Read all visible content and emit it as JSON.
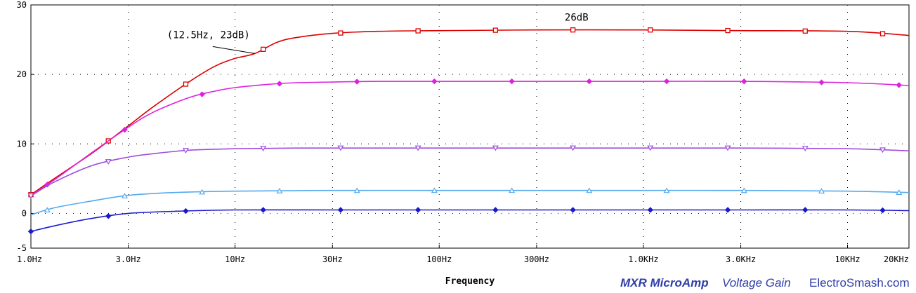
{
  "chart_data": {
    "type": "line",
    "xlabel": "Frequency",
    "ylabel": "",
    "x_scale": "log",
    "xlim": [
      1,
      20000
    ],
    "ylim": [
      -5,
      30
    ],
    "grid": "dotted",
    "legend": "none",
    "x_ticks": [
      {
        "value": 1,
        "label": "1.0Hz"
      },
      {
        "value": 3,
        "label": "3.0Hz"
      },
      {
        "value": 10,
        "label": "10Hz"
      },
      {
        "value": 30,
        "label": "30Hz"
      },
      {
        "value": 100,
        "label": "100Hz"
      },
      {
        "value": 300,
        "label": "300Hz"
      },
      {
        "value": 1000,
        "label": "1.0KHz"
      },
      {
        "value": 3000,
        "label": "3.0KHz"
      },
      {
        "value": 10000,
        "label": "10KHz"
      },
      {
        "value": 20000,
        "label": "20KHz"
      }
    ],
    "y_ticks": [
      {
        "value": 30,
        "label": "30"
      },
      {
        "value": 20,
        "label": "20"
      },
      {
        "value": 10,
        "label": "10"
      },
      {
        "value": 0,
        "label": "0"
      },
      {
        "value": -5,
        "label": "-5"
      }
    ],
    "series": [
      {
        "color": "#dd0000",
        "marker": "square",
        "x": [
          1,
          1.3,
          2,
          3,
          4,
          6,
          8,
          10,
          12.5,
          16,
          20,
          30,
          50,
          100,
          300,
          1000,
          3000,
          10000,
          20000
        ],
        "y": [
          2.7,
          5.0,
          8.7,
          12.6,
          15.4,
          19.0,
          21.2,
          22.3,
          23.0,
          24.6,
          25.3,
          25.9,
          26.2,
          26.3,
          26.4,
          26.4,
          26.3,
          26.2,
          25.6
        ]
      },
      {
        "color": "#dd22dd",
        "marker": "diamond",
        "x": [
          1,
          1.3,
          2,
          3,
          4,
          6,
          8,
          10,
          15,
          20,
          30,
          50,
          100,
          300,
          1000,
          3000,
          10000,
          20000
        ],
        "y": [
          2.6,
          4.8,
          8.8,
          12.4,
          14.6,
          16.7,
          17.6,
          18.1,
          18.6,
          18.8,
          18.9,
          19.0,
          19.0,
          19.0,
          19.0,
          19.0,
          18.8,
          18.4
        ]
      },
      {
        "color": "#9d4ddd",
        "marker": "triangle-down",
        "x": [
          1,
          1.3,
          2,
          3,
          4,
          6,
          10,
          20,
          50,
          100,
          300,
          1000,
          3000,
          10000,
          20000
        ],
        "y": [
          2.5,
          4.5,
          6.9,
          8.1,
          8.6,
          9.1,
          9.3,
          9.4,
          9.4,
          9.4,
          9.4,
          9.4,
          9.4,
          9.3,
          9.0
        ]
      },
      {
        "color": "#55aaee",
        "marker": "triangle-up",
        "x": [
          1,
          1.3,
          2,
          3,
          5,
          10,
          30,
          100,
          300,
          1000,
          3000,
          10000,
          20000
        ],
        "y": [
          -0.2,
          0.8,
          1.8,
          2.6,
          3.0,
          3.2,
          3.3,
          3.3,
          3.3,
          3.3,
          3.3,
          3.2,
          3.0
        ]
      },
      {
        "color": "#1a1acc",
        "marker": "diamond",
        "x": [
          1,
          1.3,
          2,
          3,
          5,
          10,
          30,
          100,
          300,
          1000,
          3000,
          10000,
          20000
        ],
        "y": [
          -2.6,
          -1.8,
          -0.7,
          0.0,
          0.3,
          0.5,
          0.5,
          0.5,
          0.5,
          0.5,
          0.5,
          0.5,
          0.4
        ]
      }
    ],
    "annotations": [
      {
        "text": "(12.5Hz, 23dB)",
        "x": 12.5,
        "y": 23
      },
      {
        "text": "26dB",
        "x": 300,
        "y": 26.4
      }
    ]
  },
  "footer": {
    "title": "MXR MicroAmp",
    "subtitle": "Voltage Gain",
    "site": "ElectroSmash.com"
  }
}
